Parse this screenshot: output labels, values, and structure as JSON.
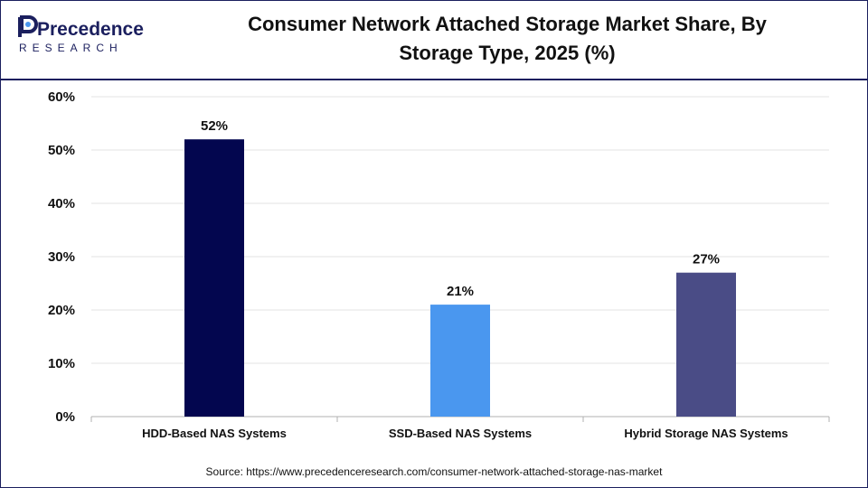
{
  "header": {
    "logo_text": "Precedence",
    "logo_subtext": "RESEARCH",
    "title_line1": "Consumer Network Attached Storage Market Share, By",
    "title_line2": "Storage Type, 2025 (%)"
  },
  "footer": {
    "source": "Source: https://www.precedenceresearch.com/consumer-network-attached-storage-nas-market"
  },
  "colors": {
    "navy": "#03064f",
    "blue": "#4a97ef",
    "slate": "#4a4c86",
    "brand": "#1b1f5e"
  },
  "chart_data": {
    "type": "bar",
    "title": "Consumer Network Attached Storage Market Share, By Storage Type, 2025 (%)",
    "categories": [
      "HDD-Based NAS Systems",
      "SSD-Based NAS Systems",
      "Hybrid Storage NAS Systems"
    ],
    "values": [
      52,
      21,
      27
    ],
    "data_labels": [
      "52%",
      "21%",
      "27%"
    ],
    "bar_colors": [
      "#03064f",
      "#4a97ef",
      "#4a4c86"
    ],
    "ylim": [
      0,
      60
    ],
    "yticks": [
      0,
      10,
      20,
      30,
      40,
      50,
      60
    ],
    "ytick_labels": [
      "0%",
      "10%",
      "20%",
      "30%",
      "40%",
      "50%",
      "60%"
    ],
    "xlabel": "",
    "ylabel": "",
    "grid": true
  }
}
